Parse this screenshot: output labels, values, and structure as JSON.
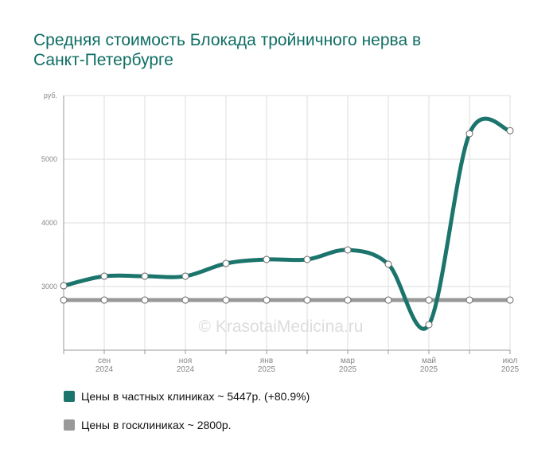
{
  "chart_data": {
    "type": "line",
    "title": "Средняя стоимость Блокада тройничного нерва в Санкт-Петербурге",
    "watermark": "© KrasotaiMedicina.ru",
    "categories": [
      null,
      "сен 2024",
      null,
      "ноя 2024",
      null,
      "янв 2025",
      null,
      "мар 2025",
      null,
      "май 2025",
      null,
      "июл 2025"
    ],
    "series": [
      {
        "name": "Цены в частных клиниках ~ 5447р. (+80.9%)",
        "color": "#1b756c",
        "values": [
          3012,
          3162,
          3162,
          3162,
          3362,
          3425,
          3425,
          3575,
          3350,
          2400,
          5400,
          5447
        ]
      },
      {
        "name": "Цены в госклиниках ~ 2800р.",
        "color": "#999999",
        "values": [
          2787,
          2787,
          2787,
          2787,
          2787,
          2787,
          2787,
          2787,
          2787,
          2787,
          2787,
          2787
        ]
      }
    ],
    "ylim": [
      2000,
      6000
    ],
    "yticks": [
      3000,
      4000,
      5000,
      {
        "value": 6000,
        "label": "руб."
      }
    ],
    "grid": true
  }
}
